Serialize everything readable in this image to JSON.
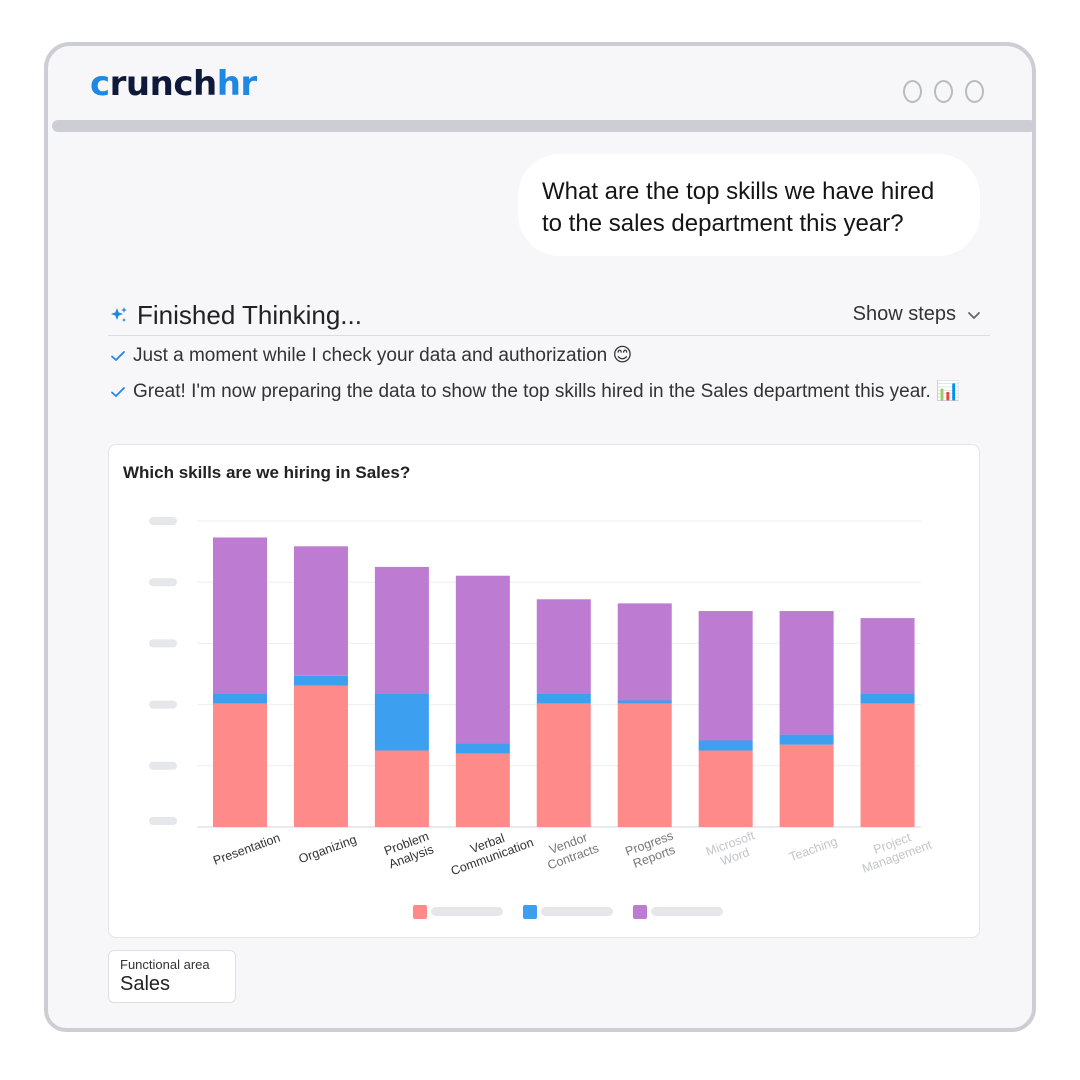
{
  "brand": {
    "logo_prefix": "c",
    "logo_main": "runch",
    "logo_suffix": "hr",
    "accent_color": "#1e88e5"
  },
  "window_controls": [
    "circle",
    "circle",
    "circle"
  ],
  "user_message": "What are the top skills we have hired to the sales department this year?",
  "thinking": {
    "title": "Finished Thinking...",
    "toggle_label": "Show steps",
    "steps": [
      "Just a moment while I check your data and authorization 😊",
      "Great! I'm now preparing the data to show the top skills hired in the Sales department this year. 📊"
    ]
  },
  "chart_data": {
    "type": "bar",
    "stacked": true,
    "title": "Which skills are we hiring in Sales?",
    "categories": [
      "Presentation",
      "Organizing",
      "Problem Analysis",
      "Verbal Communication",
      "Vendor Contracts",
      "Progress Reports",
      "Microsoft Word",
      "Teaching",
      "Project Management"
    ],
    "series": [
      {
        "color": "#ff8a8a",
        "values": [
          21,
          24,
          13,
          12.5,
          21,
          21,
          13,
          14,
          21
        ]
      },
      {
        "color": "#3d9ff0",
        "values": [
          1.7,
          1.7,
          9.7,
          1.7,
          1.7,
          0.5,
          1.7,
          1.7,
          1.7
        ]
      },
      {
        "color": "#bd7bd1",
        "values": [
          26.5,
          22,
          21.5,
          28.5,
          16,
          16.5,
          22,
          21,
          12.8
        ]
      }
    ],
    "ylim": [
      0,
      52
    ],
    "yticks": 6,
    "grid": true,
    "legend": "bottom"
  },
  "filter": {
    "label": "Functional area",
    "value": "Sales"
  }
}
